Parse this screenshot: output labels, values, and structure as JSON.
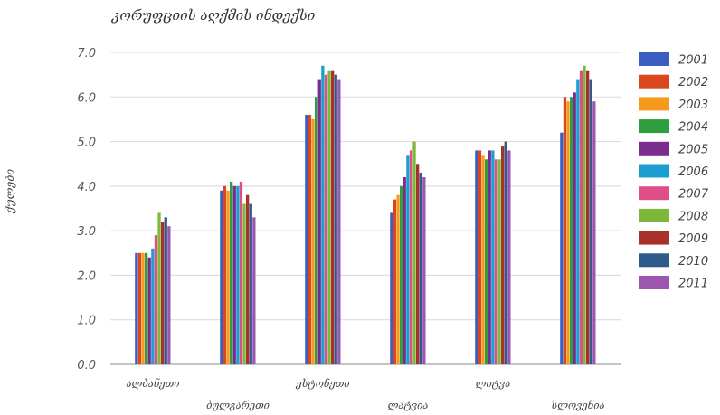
{
  "chart_data": {
    "type": "bar",
    "title": "კორუფციის აღქმის ინდექსი",
    "xlabel": "",
    "ylabel": "ქულები",
    "ylim": [
      0,
      7
    ],
    "yticks": [
      "0.0",
      "1.0",
      "2.0",
      "3.0",
      "4.0",
      "5.0",
      "6.0",
      "7.0"
    ],
    "grid": true,
    "legend_position": "right",
    "categories": [
      "ალბანეთი",
      "ბულგარეთი",
      "ესტონეთი",
      "ლატვია",
      "ლიტვა",
      "სლოვენია"
    ],
    "series": [
      {
        "name": "2001",
        "color": "#3b5ec2",
        "values": [
          2.5,
          3.9,
          5.6,
          3.4,
          4.8,
          5.2
        ]
      },
      {
        "name": "2002",
        "color": "#d9471f",
        "values": [
          2.5,
          4.0,
          5.6,
          3.7,
          4.8,
          6.0
        ]
      },
      {
        "name": "2003",
        "color": "#f59a1c",
        "values": [
          2.5,
          3.9,
          5.5,
          3.8,
          4.7,
          5.9
        ]
      },
      {
        "name": "2004",
        "color": "#2e9e3e",
        "values": [
          2.5,
          4.1,
          6.0,
          4.0,
          4.6,
          6.0
        ]
      },
      {
        "name": "2005",
        "color": "#7a2d8c",
        "values": [
          2.4,
          4.0,
          6.4,
          4.2,
          4.8,
          6.1
        ]
      },
      {
        "name": "2006",
        "color": "#1c9fd0",
        "values": [
          2.6,
          4.0,
          6.7,
          4.7,
          4.8,
          6.4
        ]
      },
      {
        "name": "2007",
        "color": "#e04e8a",
        "values": [
          2.9,
          4.1,
          6.5,
          4.8,
          4.6,
          6.6
        ]
      },
      {
        "name": "2008",
        "color": "#7db83a",
        "values": [
          3.4,
          3.6,
          6.6,
          5.0,
          4.6,
          6.7
        ]
      },
      {
        "name": "2009",
        "color": "#a8322b",
        "values": [
          3.2,
          3.8,
          6.6,
          4.5,
          4.9,
          6.6
        ]
      },
      {
        "name": "2010",
        "color": "#2d5b8a",
        "values": [
          3.3,
          3.6,
          6.5,
          4.3,
          5.0,
          6.4
        ]
      },
      {
        "name": "2011",
        "color": "#9b56b0",
        "values": [
          3.1,
          3.3,
          6.4,
          4.2,
          4.8,
          5.9
        ]
      }
    ]
  }
}
